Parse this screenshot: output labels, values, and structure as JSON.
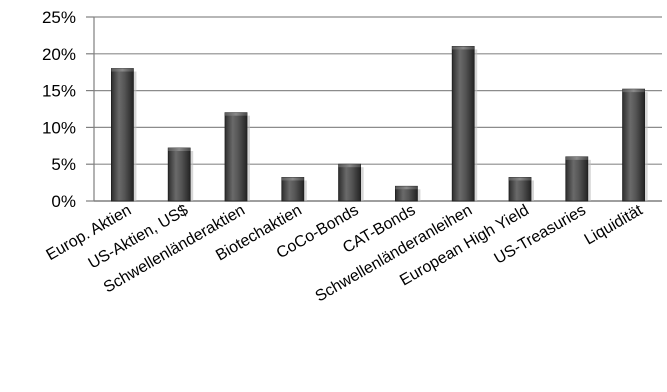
{
  "chart_data": {
    "type": "bar",
    "categories": [
      "Europ. Aktien",
      "US-Aktien, US$",
      "Schwellenländeraktien",
      "Biotechaktien",
      "CoCo-Bonds",
      "CAT-Bonds",
      "Schwellenländeranleihen",
      "European High Yield",
      "US-Treasuries",
      "Liquidität"
    ],
    "values": [
      18,
      7.2,
      12,
      3.2,
      5,
      2,
      21,
      3.2,
      6,
      15.2
    ],
    "ylim": [
      0,
      25
    ],
    "yticks": [
      0,
      5,
      10,
      15,
      20,
      25
    ],
    "ytick_labels": [
      "0%",
      "5%",
      "10%",
      "15%",
      "20%",
      "25%"
    ],
    "grid": true,
    "bar_color": "#4a4a4a"
  }
}
